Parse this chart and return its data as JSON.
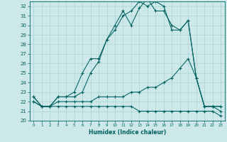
{
  "xlabel": "Humidex (Indice chaleur)",
  "ylabel": "",
  "bg_color": "#cce8e8",
  "grid_color": "#aad4d4",
  "line_color": "#006060",
  "xlim": [
    -0.5,
    23.5
  ],
  "ylim": [
    20,
    32.5
  ],
  "xticks": [
    0,
    1,
    2,
    3,
    4,
    5,
    6,
    7,
    8,
    9,
    10,
    11,
    12,
    13,
    14,
    15,
    16,
    17,
    18,
    19,
    20,
    21,
    22,
    23
  ],
  "yticks": [
    20,
    21,
    22,
    23,
    24,
    25,
    26,
    27,
    28,
    29,
    30,
    31,
    32
  ],
  "line1_x": [
    0,
    1,
    2,
    3,
    4,
    5,
    6,
    7,
    8,
    9,
    10,
    11,
    12,
    13,
    14,
    15,
    16,
    17,
    18,
    19,
    20,
    21,
    22,
    23
  ],
  "line1_y": [
    22.5,
    21.5,
    21.5,
    22.5,
    22.5,
    22.5,
    23.0,
    25.0,
    26.2,
    28.5,
    29.5,
    31.0,
    31.5,
    32.5,
    32.0,
    32.5,
    32.0,
    29.5,
    29.5,
    30.5,
    24.5,
    21.5,
    21.5,
    21.5
  ],
  "line2_x": [
    0,
    1,
    2,
    3,
    4,
    5,
    6,
    7,
    8,
    9,
    10,
    11,
    12,
    13,
    14,
    15,
    16,
    17,
    18,
    19,
    20,
    21,
    22,
    23
  ],
  "line2_y": [
    22.5,
    21.5,
    21.5,
    22.5,
    22.5,
    23.0,
    25.0,
    26.5,
    26.5,
    28.5,
    30.0,
    31.5,
    30.0,
    31.8,
    32.8,
    31.5,
    31.5,
    30.0,
    29.5,
    30.5,
    24.5,
    21.5,
    21.5,
    21.5
  ],
  "line3_x": [
    0,
    1,
    2,
    3,
    4,
    5,
    6,
    7,
    8,
    9,
    10,
    11,
    12,
    13,
    14,
    15,
    16,
    17,
    18,
    19,
    20,
    21,
    22,
    23
  ],
  "line3_y": [
    22.0,
    21.5,
    21.5,
    22.0,
    22.0,
    22.0,
    22.0,
    22.0,
    22.5,
    22.5,
    22.5,
    22.5,
    23.0,
    23.0,
    23.5,
    23.5,
    24.0,
    24.5,
    25.5,
    26.5,
    24.5,
    21.5,
    21.5,
    21.0
  ],
  "line4_x": [
    0,
    1,
    2,
    3,
    4,
    5,
    6,
    7,
    8,
    9,
    10,
    11,
    12,
    13,
    14,
    15,
    16,
    17,
    18,
    19,
    20,
    21,
    22,
    23
  ],
  "line4_y": [
    22.0,
    21.5,
    21.5,
    21.5,
    21.5,
    21.5,
    21.5,
    21.5,
    21.5,
    21.5,
    21.5,
    21.5,
    21.5,
    21.0,
    21.0,
    21.0,
    21.0,
    21.0,
    21.0,
    21.0,
    21.0,
    21.0,
    21.0,
    20.5
  ]
}
